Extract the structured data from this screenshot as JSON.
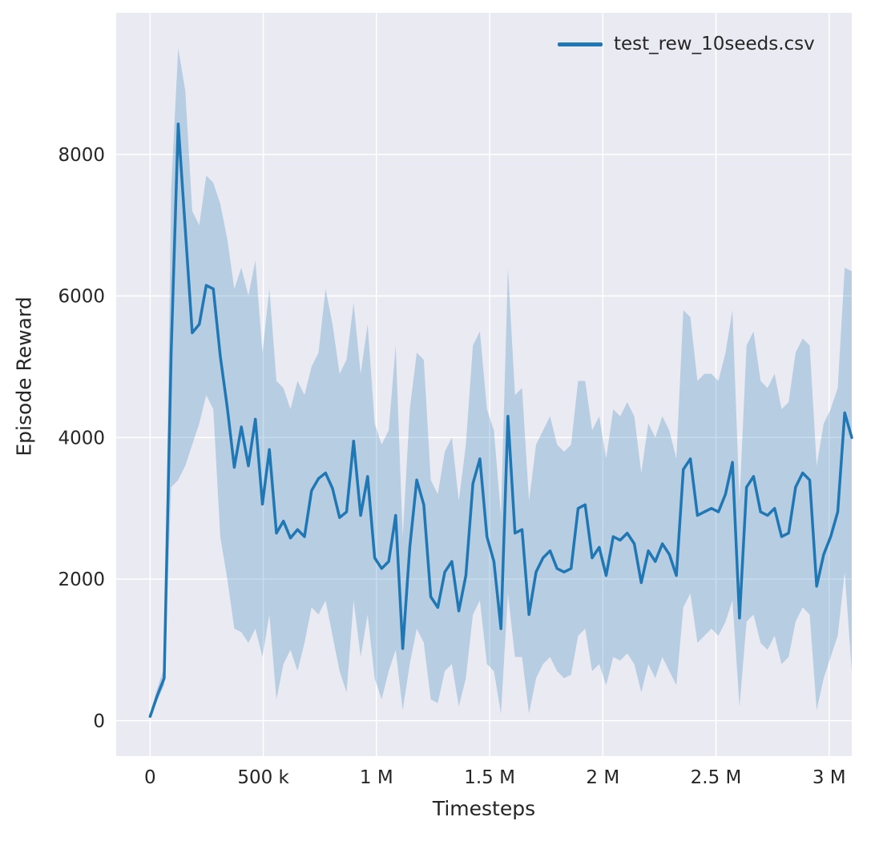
{
  "figure": {
    "background": "#ffffff",
    "plot_background": "#eaeaf2",
    "grid_color": "#ffffff",
    "text_color": "#262626"
  },
  "chart_data": {
    "type": "line",
    "title": "",
    "xlabel": "Timesteps",
    "ylabel": "Episode Reward",
    "grid": true,
    "legend_position": "upper right",
    "xlim": [
      -150000,
      3100000
    ],
    "ylim": [
      -500,
      10000
    ],
    "xticks": {
      "values": [
        0,
        500000,
        1000000,
        1500000,
        2000000,
        2500000,
        3000000
      ],
      "labels": [
        "0",
        "500 k",
        "1 M",
        "1.5 M",
        "2 M",
        "2.5 M",
        "3 M"
      ]
    },
    "yticks": {
      "values": [
        0,
        2000,
        4000,
        6000,
        8000
      ],
      "labels": [
        "0",
        "2000",
        "4000",
        "6000",
        "8000"
      ]
    },
    "series": [
      {
        "name": "test_rew_10seeds.csv",
        "color": "#1f77b4",
        "band_opacity": 0.25,
        "x": [
          0,
          31000,
          62000,
          93000,
          124000,
          155000,
          186000,
          217000,
          248000,
          279000,
          310000,
          341000,
          372000,
          403000,
          434000,
          465000,
          496000,
          527000,
          558000,
          589000,
          620000,
          651000,
          682000,
          713000,
          744000,
          775000,
          806000,
          837000,
          868000,
          899000,
          930000,
          961000,
          992000,
          1023000,
          1054000,
          1085000,
          1116000,
          1147000,
          1178000,
          1209000,
          1240000,
          1271000,
          1302000,
          1333000,
          1364000,
          1395000,
          1426000,
          1457000,
          1488000,
          1519000,
          1550000,
          1581000,
          1612000,
          1643000,
          1674000,
          1705000,
          1736000,
          1767000,
          1798000,
          1829000,
          1860000,
          1891000,
          1922000,
          1953000,
          1984000,
          2015000,
          2046000,
          2077000,
          2108000,
          2139000,
          2170000,
          2201000,
          2232000,
          2263000,
          2294000,
          2325000,
          2356000,
          2387000,
          2418000,
          2449000,
          2480000,
          2511000,
          2542000,
          2573000,
          2604000,
          2635000,
          2666000,
          2697000,
          2728000,
          2759000,
          2790000,
          2821000,
          2852000,
          2883000,
          2914000,
          2945000,
          2976000,
          3007000,
          3038000,
          3069000,
          3100000
        ],
        "y": [
          60,
          350,
          600,
          5200,
          8430,
          6950,
          5480,
          5600,
          6150,
          6100,
          5150,
          4420,
          3580,
          4150,
          3600,
          4260,
          3060,
          3830,
          2650,
          2820,
          2580,
          2700,
          2600,
          3250,
          3420,
          3500,
          3280,
          2870,
          2950,
          3950,
          2900,
          3450,
          2300,
          2150,
          2250,
          2900,
          1020,
          2450,
          3400,
          3050,
          1750,
          1600,
          2100,
          2250,
          1550,
          2050,
          3350,
          3700,
          2600,
          2250,
          1300,
          4300,
          2650,
          2700,
          1500,
          2100,
          2300,
          2400,
          2150,
          2100,
          2150,
          3000,
          3050,
          2300,
          2450,
          2050,
          2600,
          2550,
          2650,
          2500,
          1950,
          2400,
          2250,
          2500,
          2350,
          2050,
          3550,
          3700,
          2900,
          2950,
          3000,
          2950,
          3200,
          3650,
          1450,
          3300,
          3450,
          2950,
          2900,
          3000,
          2600,
          2650,
          3300,
          3500,
          3400,
          1900,
          2350,
          2600,
          2950,
          4350,
          4000
        ],
        "y_lower": [
          40,
          280,
          500,
          3300,
          3400,
          3600,
          3900,
          4200,
          4600,
          4400,
          2600,
          2000,
          1300,
          1250,
          1100,
          1300,
          900,
          1500,
          300,
          800,
          1000,
          700,
          1100,
          1600,
          1500,
          1700,
          1200,
          700,
          400,
          1700,
          900,
          1500,
          600,
          300,
          700,
          1000,
          150,
          800,
          1300,
          1100,
          300,
          250,
          700,
          800,
          200,
          600,
          1500,
          1700,
          800,
          700,
          100,
          1800,
          900,
          900,
          100,
          600,
          800,
          900,
          700,
          600,
          650,
          1200,
          1300,
          700,
          800,
          500,
          900,
          850,
          950,
          800,
          400,
          800,
          600,
          900,
          700,
          500,
          1600,
          1800,
          1100,
          1200,
          1300,
          1200,
          1400,
          1700,
          200,
          1400,
          1500,
          1100,
          1000,
          1200,
          800,
          900,
          1400,
          1600,
          1500,
          150,
          600,
          900,
          1200,
          2100,
          700
        ],
        "y_upper": [
          90,
          450,
          750,
          7500,
          9500,
          8900,
          7200,
          7000,
          7700,
          7600,
          7300,
          6800,
          6100,
          6400,
          6000,
          6500,
          5200,
          6100,
          4800,
          4700,
          4400,
          4800,
          4600,
          5000,
          5200,
          6100,
          5600,
          4900,
          5100,
          5900,
          4900,
          5600,
          4200,
          3900,
          4100,
          5300,
          2600,
          4400,
          5200,
          5100,
          3400,
          3200,
          3800,
          4000,
          3100,
          3900,
          5300,
          5500,
          4400,
          4100,
          2900,
          6400,
          4600,
          4700,
          3100,
          3900,
          4100,
          4300,
          3900,
          3800,
          3900,
          4800,
          4800,
          4100,
          4300,
          3700,
          4400,
          4300,
          4500,
          4300,
          3500,
          4200,
          4000,
          4300,
          4100,
          3700,
          5800,
          5700,
          4800,
          4900,
          4900,
          4800,
          5200,
          5800,
          3100,
          5300,
          5500,
          4800,
          4700,
          4900,
          4400,
          4500,
          5200,
          5400,
          5300,
          3600,
          4200,
          4400,
          4700,
          6400,
          6350
        ]
      }
    ]
  }
}
